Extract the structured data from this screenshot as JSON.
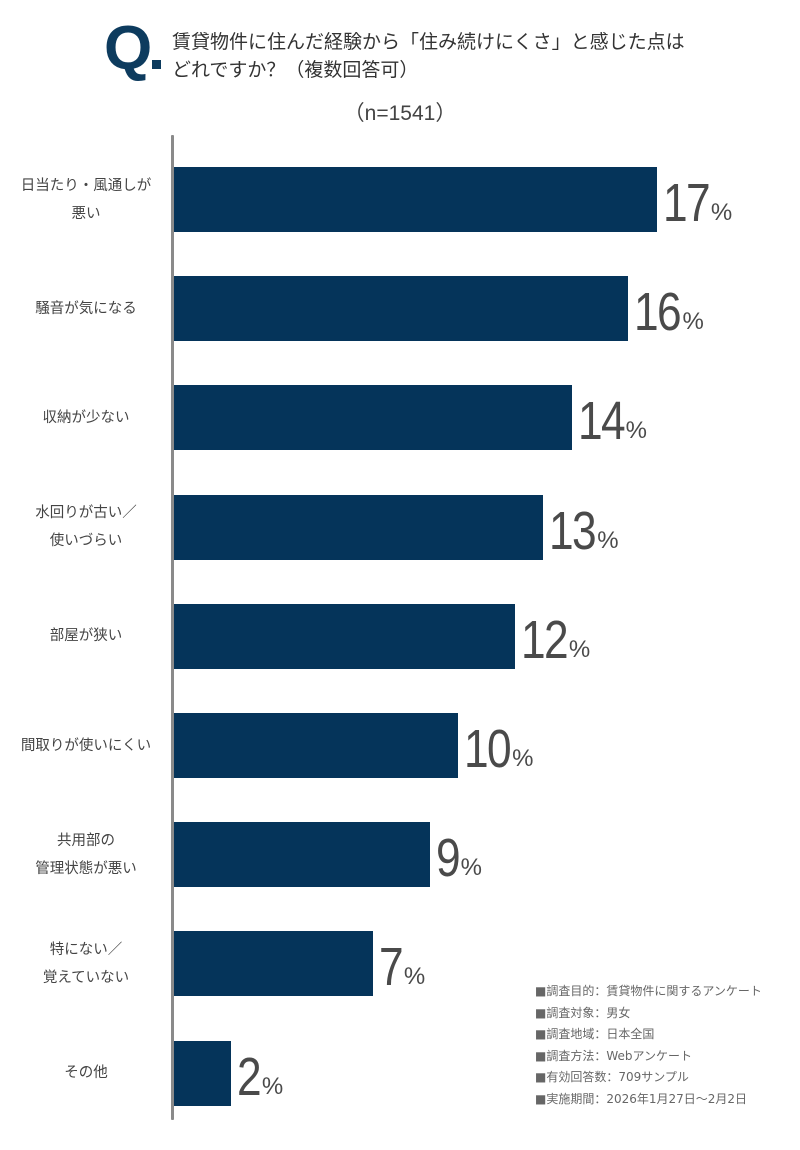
{
  "header": {
    "q_mark": "Q",
    "title_line1": "賃貸物件に住んだ経験から「住み続けにくさ」と感じた点は",
    "title_line2": "どれですか？（複数回答可）",
    "sample_size": "（n=1541）"
  },
  "colors": {
    "bar": "#05345a",
    "q_mark": "#0d3b5e",
    "axis": "#8a8a8a",
    "value_text": "#4a4a4a",
    "label_text": "#444444"
  },
  "rows": [
    {
      "label_lines": [
        "日当たり・風通しが",
        "悪い"
      ],
      "value": "17",
      "unit": "%"
    },
    {
      "label_lines": [
        "騒音が気になる"
      ],
      "value": "16",
      "unit": "%"
    },
    {
      "label_lines": [
        "収納が少ない"
      ],
      "value": "14",
      "unit": "%"
    },
    {
      "label_lines": [
        "水回りが古い／",
        "使いづらい"
      ],
      "value": "13",
      "unit": "%"
    },
    {
      "label_lines": [
        "部屋が狭い"
      ],
      "value": "12",
      "unit": "%"
    },
    {
      "label_lines": [
        "間取りが使いにくい"
      ],
      "value": "10",
      "unit": "%"
    },
    {
      "label_lines": [
        "共用部の",
        "管理状態が悪い"
      ],
      "value": "9",
      "unit": "%"
    },
    {
      "label_lines": [
        "特にない／",
        "覚えていない"
      ],
      "value": "7",
      "unit": "%"
    },
    {
      "label_lines": [
        "その他"
      ],
      "value": "2",
      "unit": "%"
    }
  ],
  "notes": [
    "■調査目的：賃貸物件に関するアンケート",
    "■調査対象：男女",
    "■調査地域：日本全国",
    "■調査方法：Webアンケート",
    "■有効回答数：709サンプル",
    "■実施期間：2026年1月27日〜2月2日"
  ],
  "chart_data": {
    "type": "bar",
    "orientation": "horizontal",
    "title": "賃貸物件に住んだ経験から「住み続けにくさ」と感じた点はどれですか？（複数回答可）",
    "subtitle": "（n=1541）",
    "xlabel": "",
    "ylabel": "",
    "unit": "%",
    "grid": false,
    "legend": null,
    "categories": [
      "日当たり・風通しが悪い",
      "騒音が気になる",
      "収納が少ない",
      "水回りが古い／使いづらい",
      "部屋が狭い",
      "間取りが使いにくい",
      "共用部の管理状態が悪い",
      "特にない／覚えていない",
      "その他"
    ],
    "values": [
      17,
      16,
      14,
      13,
      12,
      10,
      9,
      7,
      2
    ],
    "annotations": [
      "■調査目的：賃貸物件に関するアンケート",
      "■調査対象：男女",
      "■調査地域：日本全国",
      "■調査方法：Webアンケート",
      "■有効回答数：709サンプル",
      "■実施期間：2026年1月27日〜2月2日"
    ]
  }
}
